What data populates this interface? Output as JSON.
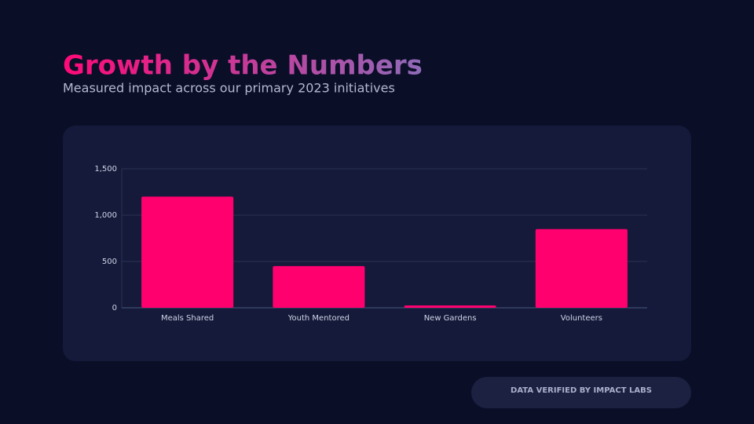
{
  "chart_data": {
    "type": "bar",
    "title": "Growth by the Numbers",
    "subtitle": "Measured impact across our primary 2023 initiatives",
    "categories": [
      "Meals Shared",
      "Youth Mentored",
      "New Gardens",
      "Volunteers"
    ],
    "values": [
      1200,
      450,
      25,
      850
    ],
    "color": "#ff006e",
    "ylim": [
      0,
      1500
    ],
    "yticks": [
      0,
      500,
      {
        "value": 1000,
        "label": "1,000"
      },
      {
        "value": 1500,
        "label": "1,500"
      }
    ],
    "grid": true
  },
  "footer": {
    "badge": "DATA VERIFIED BY IMPACT LABS"
  }
}
